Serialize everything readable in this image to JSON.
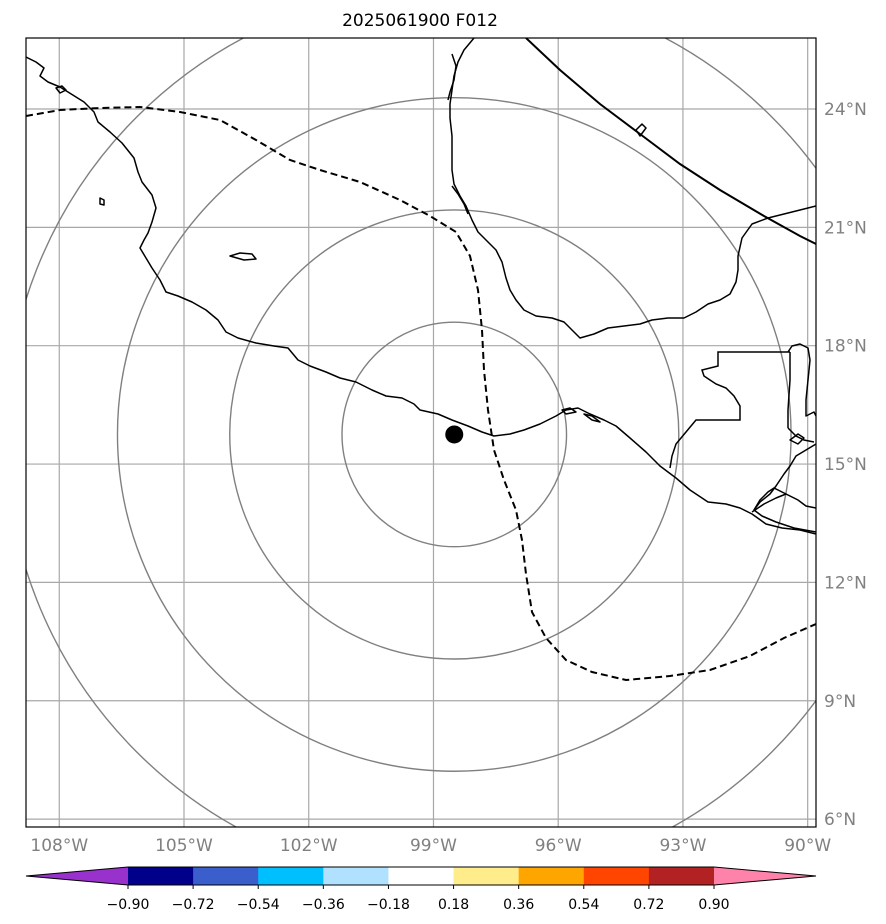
{
  "title": "2025061900 F012",
  "map": {
    "lon_range": [
      -108.8,
      -89.8
    ],
    "lat_range": [
      5.8,
      25.8
    ],
    "center_marker": {
      "lon": -98.5,
      "lat": 15.75
    },
    "range_ring_radii_deg": [
      2.7,
      5.4,
      8.1,
      10.8
    ],
    "lon_ticks": [
      -108,
      -105,
      -102,
      -99,
      -96,
      -93,
      -90
    ],
    "lat_ticks": [
      6,
      9,
      12,
      15,
      18,
      21,
      24
    ],
    "lon_tick_labels": [
      "108°W",
      "105°W",
      "102°W",
      "99°W",
      "96°W",
      "93°W",
      "90°W"
    ],
    "lat_tick_labels": [
      "6°N",
      "9°N",
      "12°N",
      "15°N",
      "18°N",
      "21°N",
      "24°N"
    ],
    "grid": true
  },
  "colorbar": {
    "levels": [
      "−0.90",
      "−0.72",
      "−0.54",
      "−0.36",
      "−0.18",
      "0.18",
      "0.36",
      "0.54",
      "0.72",
      "0.90"
    ],
    "colors": [
      "#9932cc",
      "#00008b",
      "#3a5fcd",
      "#00bfff",
      "#b0e2ff",
      "#ffffff",
      "#ffec8b",
      "#ffa500",
      "#ff4500",
      "#b22222",
      "#ff82ab"
    ],
    "extend": "both"
  }
}
